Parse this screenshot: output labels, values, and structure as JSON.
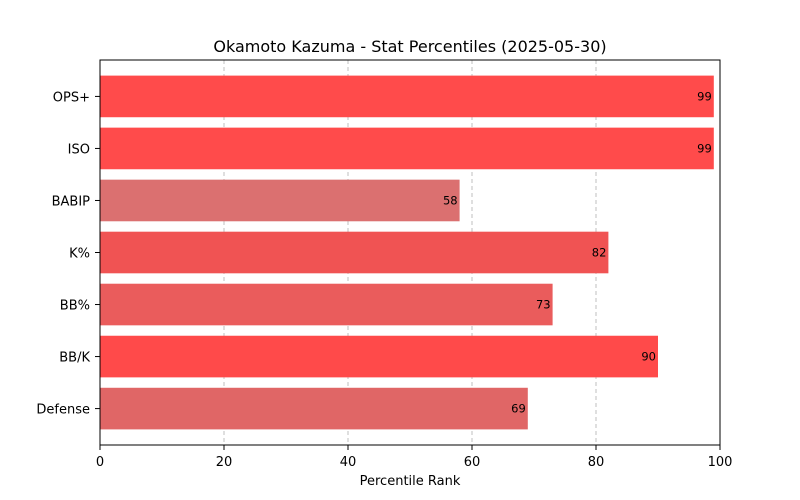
{
  "chart_data": {
    "type": "bar",
    "orientation": "horizontal",
    "title": "Okamoto Kazuma - Stat Percentiles (2025-05-30)",
    "xlabel": "Percentile Rank",
    "ylabel": "",
    "xlim": [
      0,
      100
    ],
    "xticks": [
      0,
      20,
      40,
      60,
      80,
      100
    ],
    "grid": "x-dashed",
    "categories": [
      "OPS+",
      "ISO",
      "BABIP",
      "K%",
      "BB%",
      "BB/K",
      "Defense"
    ],
    "values": [
      99,
      99,
      58,
      82,
      73,
      90,
      69
    ],
    "colors": [
      "#FF4B4B",
      "#FF4B4B",
      "#DB7070",
      "#F05353",
      "#EA5C5C",
      "#FF4A4A",
      "#E06666"
    ]
  }
}
